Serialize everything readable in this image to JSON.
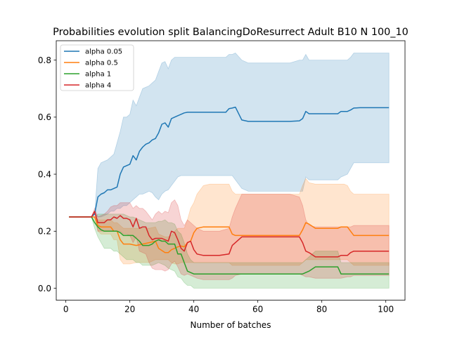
{
  "chart_data": {
    "type": "line",
    "title": "Probabilities evolution split BalancingDoResurrect Adult B10 N 100_10",
    "xlabel": "Number of batches",
    "ylabel": "",
    "xlim": [
      -3.0,
      106.0
    ],
    "ylim": [
      -0.042,
      0.868
    ],
    "xticks": [
      0,
      20,
      40,
      60,
      80,
      100
    ],
    "yticks": [
      0.0,
      0.2,
      0.4,
      0.6,
      0.8
    ],
    "xtick_labels": [
      "0",
      "20",
      "40",
      "60",
      "80",
      "100"
    ],
    "ytick_labels": [
      "0.0",
      "0.2",
      "0.4",
      "0.6",
      "0.8"
    ],
    "grid": false,
    "legend_position": "top-left",
    "series": [
      {
        "name": "alpha 0.05",
        "color": "#1f77b4",
        "band_alpha": 0.2,
        "x": [
          1,
          8,
          9,
          10,
          11,
          12,
          13,
          14,
          15,
          16,
          17,
          18,
          19,
          20,
          21,
          22,
          23,
          24,
          25,
          26,
          27,
          28,
          29,
          30,
          31,
          32,
          33,
          34,
          35,
          36,
          37,
          38,
          40,
          44,
          50,
          51,
          52,
          53,
          55,
          57,
          60,
          65,
          70,
          73,
          74,
          75,
          76,
          80,
          85,
          86,
          88,
          89,
          90,
          92,
          95,
          101
        ],
        "values": [
          0.25,
          0.25,
          0.26,
          0.32,
          0.33,
          0.335,
          0.345,
          0.345,
          0.35,
          0.355,
          0.4,
          0.425,
          0.43,
          0.435,
          0.465,
          0.45,
          0.48,
          0.495,
          0.505,
          0.51,
          0.52,
          0.525,
          0.545,
          0.575,
          0.58,
          0.565,
          0.595,
          0.6,
          0.605,
          0.61,
          0.615,
          0.617,
          0.617,
          0.617,
          0.617,
          0.63,
          0.632,
          0.635,
          0.59,
          0.585,
          0.585,
          0.585,
          0.585,
          0.587,
          0.595,
          0.62,
          0.612,
          0.612,
          0.612,
          0.62,
          0.62,
          0.625,
          0.632,
          0.633,
          0.633,
          0.633
        ],
        "lower": [
          0.25,
          0.25,
          0.26,
          0.25,
          0.25,
          0.255,
          0.26,
          0.27,
          0.27,
          0.28,
          0.28,
          0.29,
          0.29,
          0.3,
          0.31,
          0.32,
          0.33,
          0.33,
          0.335,
          0.34,
          0.335,
          0.32,
          0.31,
          0.33,
          0.34,
          0.345,
          0.36,
          0.375,
          0.39,
          0.395,
          0.395,
          0.395,
          0.395,
          0.395,
          0.395,
          0.395,
          0.395,
          0.38,
          0.35,
          0.34,
          0.34,
          0.34,
          0.34,
          0.34,
          0.34,
          0.39,
          0.38,
          0.38,
          0.38,
          0.39,
          0.4,
          0.42,
          0.44,
          0.44,
          0.44,
          0.44
        ],
        "upper": [
          0.25,
          0.25,
          0.26,
          0.42,
          0.44,
          0.445,
          0.45,
          0.46,
          0.47,
          0.51,
          0.55,
          0.6,
          0.6,
          0.61,
          0.66,
          0.64,
          0.67,
          0.7,
          0.705,
          0.71,
          0.72,
          0.73,
          0.76,
          0.79,
          0.795,
          0.77,
          0.8,
          0.81,
          0.81,
          0.81,
          0.81,
          0.81,
          0.81,
          0.81,
          0.81,
          0.82,
          0.82,
          0.825,
          0.8,
          0.79,
          0.79,
          0.79,
          0.79,
          0.8,
          0.8,
          0.82,
          0.8,
          0.8,
          0.8,
          0.8,
          0.8,
          0.81,
          0.825,
          0.825,
          0.825,
          0.825
        ]
      },
      {
        "name": "alpha 0.5",
        "color": "#ff7f0e",
        "band_alpha": 0.2,
        "x": [
          1,
          8,
          9,
          10,
          11,
          12,
          13,
          14,
          15,
          16,
          17,
          18,
          19,
          20,
          22,
          24,
          26,
          28,
          29,
          31,
          32,
          33,
          34,
          35,
          36,
          37,
          38,
          39,
          40,
          41,
          43,
          45,
          48,
          51,
          52,
          53,
          55,
          58,
          63,
          70,
          73,
          74,
          75,
          76,
          78,
          80,
          82,
          85,
          86,
          87,
          88,
          89,
          90,
          92,
          95,
          101
        ],
        "values": [
          0.25,
          0.25,
          0.25,
          0.22,
          0.215,
          0.215,
          0.215,
          0.215,
          0.2,
          0.2,
          0.17,
          0.155,
          0.155,
          0.155,
          0.15,
          0.155,
          0.16,
          0.165,
          0.14,
          0.125,
          0.125,
          0.135,
          0.14,
          0.145,
          0.148,
          0.145,
          0.16,
          0.165,
          0.195,
          0.21,
          0.215,
          0.215,
          0.215,
          0.215,
          0.19,
          0.185,
          0.185,
          0.185,
          0.185,
          0.185,
          0.185,
          0.205,
          0.23,
          0.225,
          0.21,
          0.21,
          0.21,
          0.21,
          0.215,
          0.215,
          0.215,
          0.2,
          0.185,
          0.185,
          0.185,
          0.185
        ],
        "lower": [
          0.25,
          0.25,
          0.25,
          0.2,
          0.19,
          0.19,
          0.19,
          0.19,
          0.17,
          0.17,
          0.1,
          0.085,
          0.085,
          0.085,
          0.09,
          0.09,
          0.09,
          0.1,
          0.1,
          0.1,
          0.1,
          0.09,
          0.085,
          0.085,
          0.09,
          0.09,
          0.09,
          0.09,
          0.09,
          0.09,
          0.09,
          0.09,
          0.09,
          0.09,
          0.08,
          0.08,
          0.08,
          0.08,
          0.08,
          0.08,
          0.08,
          0.09,
          0.1,
          0.1,
          0.1,
          0.1,
          0.1,
          0.1,
          0.1,
          0.1,
          0.1,
          0.09,
          0.08,
          0.08,
          0.08,
          0.08
        ],
        "upper": [
          0.25,
          0.25,
          0.25,
          0.24,
          0.24,
          0.24,
          0.24,
          0.24,
          0.23,
          0.23,
          0.22,
          0.21,
          0.21,
          0.21,
          0.21,
          0.21,
          0.21,
          0.215,
          0.19,
          0.18,
          0.18,
          0.185,
          0.2,
          0.21,
          0.21,
          0.21,
          0.24,
          0.28,
          0.3,
          0.33,
          0.36,
          0.365,
          0.365,
          0.365,
          0.34,
          0.33,
          0.33,
          0.33,
          0.33,
          0.33,
          0.33,
          0.36,
          0.385,
          0.37,
          0.365,
          0.365,
          0.365,
          0.365,
          0.365,
          0.365,
          0.36,
          0.34,
          0.33,
          0.33,
          0.33,
          0.33
        ]
      },
      {
        "name": "alpha 1",
        "color": "#2ca02c",
        "band_alpha": 0.2,
        "x": [
          1,
          8,
          9,
          10,
          11,
          12,
          13,
          14,
          15,
          16,
          17,
          18,
          19,
          20,
          21,
          22,
          23,
          24,
          25,
          26,
          27,
          28,
          29,
          30,
          31,
          32,
          33,
          34,
          35,
          36,
          37,
          38,
          39,
          40,
          42,
          46,
          50,
          55,
          60,
          65,
          70,
          74,
          75,
          76,
          78,
          80,
          82,
          85,
          86,
          90,
          95,
          101
        ],
        "values": [
          0.25,
          0.25,
          0.23,
          0.215,
          0.205,
          0.2,
          0.2,
          0.2,
          0.2,
          0.2,
          0.195,
          0.185,
          0.185,
          0.185,
          0.185,
          0.175,
          0.165,
          0.15,
          0.15,
          0.15,
          0.155,
          0.165,
          0.17,
          0.165,
          0.165,
          0.155,
          0.155,
          0.155,
          0.12,
          0.12,
          0.09,
          0.06,
          0.055,
          0.05,
          0.05,
          0.05,
          0.05,
          0.05,
          0.05,
          0.05,
          0.05,
          0.05,
          0.055,
          0.06,
          0.075,
          0.075,
          0.075,
          0.075,
          0.05,
          0.05,
          0.05,
          0.05
        ],
        "lower": [
          0.25,
          0.25,
          0.21,
          0.18,
          0.16,
          0.14,
          0.14,
          0.14,
          0.13,
          0.13,
          0.12,
          0.11,
          0.1,
          0.1,
          0.1,
          0.09,
          0.09,
          0.08,
          0.08,
          0.08,
          0.08,
          0.085,
          0.09,
          0.085,
          0.08,
          0.07,
          0.065,
          0.06,
          0.04,
          0.035,
          0.02,
          0.01,
          0.01,
          0.0,
          0.0,
          0.0,
          0.0,
          0.0,
          0.0,
          0.0,
          0.0,
          0.0,
          0.0,
          0.0,
          0.0,
          0.0,
          0.0,
          0.0,
          0.0,
          0.0,
          0.0,
          0.0
        ],
        "upper": [
          0.25,
          0.25,
          0.25,
          0.26,
          0.26,
          0.26,
          0.26,
          0.26,
          0.26,
          0.26,
          0.26,
          0.26,
          0.255,
          0.25,
          0.25,
          0.245,
          0.24,
          0.235,
          0.23,
          0.23,
          0.23,
          0.23,
          0.235,
          0.235,
          0.24,
          0.23,
          0.23,
          0.225,
          0.2,
          0.19,
          0.16,
          0.12,
          0.1,
          0.09,
          0.09,
          0.09,
          0.09,
          0.09,
          0.09,
          0.09,
          0.09,
          0.09,
          0.1,
          0.11,
          0.13,
          0.13,
          0.13,
          0.13,
          0.09,
          0.09,
          0.09,
          0.09
        ]
      },
      {
        "name": "alpha 4",
        "color": "#d62728",
        "band_alpha": 0.2,
        "x": [
          1,
          8,
          9,
          10,
          11,
          12,
          13,
          14,
          15,
          16,
          17,
          18,
          19,
          20,
          21,
          22,
          23,
          24,
          25,
          26,
          27,
          28,
          29,
          30,
          31,
          32,
          33,
          34,
          35,
          36,
          37,
          38,
          39,
          40,
          41,
          43,
          45,
          48,
          51,
          52,
          53,
          55,
          58,
          63,
          70,
          73,
          74,
          75,
          76,
          78,
          80,
          82,
          85,
          86,
          88,
          89,
          90,
          92,
          95,
          101
        ],
        "values": [
          0.25,
          0.25,
          0.27,
          0.23,
          0.23,
          0.23,
          0.24,
          0.24,
          0.25,
          0.245,
          0.255,
          0.245,
          0.245,
          0.24,
          0.215,
          0.245,
          0.21,
          0.215,
          0.215,
          0.185,
          0.17,
          0.175,
          0.175,
          0.175,
          0.17,
          0.165,
          0.2,
          0.195,
          0.17,
          0.14,
          0.13,
          0.16,
          0.165,
          0.135,
          0.12,
          0.115,
          0.115,
          0.115,
          0.12,
          0.15,
          0.16,
          0.18,
          0.18,
          0.18,
          0.18,
          0.18,
          0.16,
          0.13,
          0.125,
          0.11,
          0.11,
          0.11,
          0.11,
          0.115,
          0.115,
          0.125,
          0.13,
          0.13,
          0.13,
          0.13
        ],
        "lower": [
          0.25,
          0.25,
          0.26,
          0.2,
          0.2,
          0.2,
          0.2,
          0.2,
          0.2,
          0.2,
          0.2,
          0.19,
          0.19,
          0.185,
          0.16,
          0.18,
          0.13,
          0.125,
          0.12,
          0.09,
          0.07,
          0.065,
          0.065,
          0.065,
          0.06,
          0.065,
          0.085,
          0.095,
          0.075,
          0.05,
          0.045,
          0.05,
          0.045,
          0.04,
          0.035,
          0.03,
          0.03,
          0.03,
          0.03,
          0.035,
          0.045,
          0.05,
          0.05,
          0.05,
          0.05,
          0.05,
          0.045,
          0.04,
          0.04,
          0.035,
          0.035,
          0.035,
          0.035,
          0.035,
          0.04,
          0.04,
          0.045,
          0.045,
          0.045,
          0.045
        ],
        "upper": [
          0.25,
          0.25,
          0.28,
          0.25,
          0.255,
          0.26,
          0.27,
          0.285,
          0.29,
          0.29,
          0.3,
          0.3,
          0.3,
          0.3,
          0.28,
          0.29,
          0.28,
          0.28,
          0.27,
          0.255,
          0.24,
          0.26,
          0.27,
          0.26,
          0.27,
          0.265,
          0.3,
          0.31,
          0.29,
          0.24,
          0.22,
          0.24,
          0.23,
          0.22,
          0.21,
          0.2,
          0.2,
          0.2,
          0.21,
          0.25,
          0.28,
          0.33,
          0.33,
          0.33,
          0.33,
          0.32,
          0.29,
          0.24,
          0.22,
          0.215,
          0.215,
          0.215,
          0.215,
          0.215,
          0.215,
          0.215,
          0.22,
          0.22,
          0.22,
          0.22
        ]
      }
    ]
  }
}
